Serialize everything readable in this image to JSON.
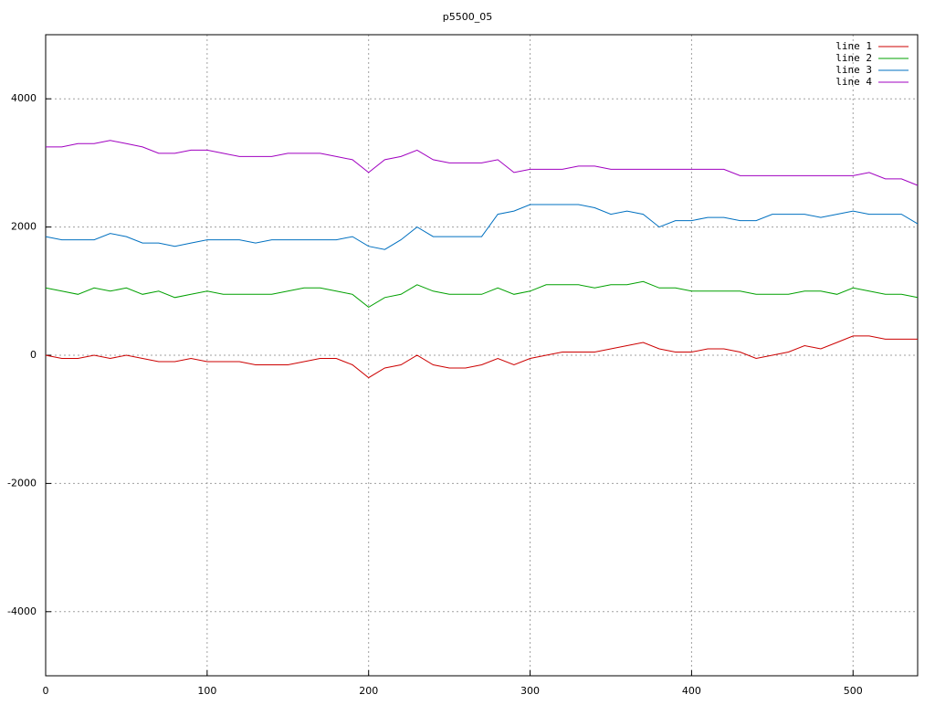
{
  "chart_data": {
    "type": "line",
    "title": "p5500_05",
    "x": [
      0,
      10,
      20,
      30,
      40,
      50,
      60,
      70,
      80,
      90,
      100,
      110,
      120,
      130,
      140,
      150,
      160,
      170,
      180,
      190,
      200,
      210,
      220,
      230,
      240,
      250,
      260,
      270,
      280,
      290,
      300,
      310,
      320,
      330,
      340,
      350,
      360,
      370,
      380,
      390,
      400,
      410,
      420,
      430,
      440,
      450,
      460,
      470,
      480,
      490,
      500,
      510,
      520,
      530,
      540
    ],
    "series": [
      {
        "name": "line 1",
        "color": "#cc0000",
        "values": [
          0,
          -50,
          -50,
          0,
          -50,
          0,
          -50,
          -100,
          -100,
          -50,
          -100,
          -100,
          -100,
          -150,
          -150,
          -150,
          -100,
          -50,
          -50,
          -150,
          -350,
          -200,
          -150,
          0,
          -150,
          -200,
          -200,
          -150,
          -50,
          -150,
          -50,
          0,
          50,
          50,
          50,
          100,
          150,
          200,
          100,
          50,
          50,
          100,
          100,
          50,
          -50,
          0,
          50,
          150,
          100,
          200,
          300,
          300,
          250,
          250,
          250
        ]
      },
      {
        "name": "line 2",
        "color": "#00a000",
        "values": [
          1050,
          1000,
          950,
          1050,
          1000,
          1050,
          950,
          1000,
          900,
          950,
          1000,
          950,
          950,
          950,
          950,
          1000,
          1050,
          1050,
          1000,
          950,
          750,
          900,
          950,
          1100,
          1000,
          950,
          950,
          950,
          1050,
          950,
          1000,
          1100,
          1100,
          1100,
          1050,
          1100,
          1100,
          1150,
          1050,
          1050,
          1000,
          1000,
          1000,
          1000,
          950,
          950,
          950,
          1000,
          1000,
          950,
          1050,
          1000,
          950,
          950,
          900
        ]
      },
      {
        "name": "line 3",
        "color": "#0070c0",
        "values": [
          1850,
          1800,
          1800,
          1800,
          1900,
          1850,
          1750,
          1750,
          1700,
          1750,
          1800,
          1800,
          1800,
          1750,
          1800,
          1800,
          1800,
          1800,
          1800,
          1850,
          1700,
          1650,
          1800,
          2000,
          1850,
          1850,
          1850,
          1850,
          2200,
          2250,
          2350,
          2350,
          2350,
          2350,
          2300,
          2200,
          2250,
          2200,
          2000,
          2100,
          2100,
          2150,
          2150,
          2100,
          2100,
          2200,
          2200,
          2200,
          2150,
          2200,
          2250,
          2200,
          2200,
          2200,
          2050
        ]
      },
      {
        "name": "line 4",
        "color": "#a000c0",
        "values": [
          3250,
          3250,
          3300,
          3300,
          3350,
          3300,
          3250,
          3150,
          3150,
          3200,
          3200,
          3150,
          3100,
          3100,
          3100,
          3150,
          3150,
          3150,
          3100,
          3050,
          2850,
          3050,
          3100,
          3200,
          3050,
          3000,
          3000,
          3000,
          3050,
          2850,
          2900,
          2900,
          2900,
          2950,
          2950,
          2900,
          2900,
          2900,
          2900,
          2900,
          2900,
          2900,
          2900,
          2800,
          2800,
          2800,
          2800,
          2800,
          2800,
          2800,
          2800,
          2850,
          2750,
          2750,
          2650
        ]
      }
    ],
    "xlim": [
      0,
      540
    ],
    "xticks": [
      0,
      100,
      200,
      300,
      400,
      500
    ],
    "ylim": [
      -5000,
      5000
    ],
    "yticks": [
      -4000,
      -2000,
      0,
      2000,
      4000
    ],
    "grid": true,
    "legend": "top-right"
  }
}
